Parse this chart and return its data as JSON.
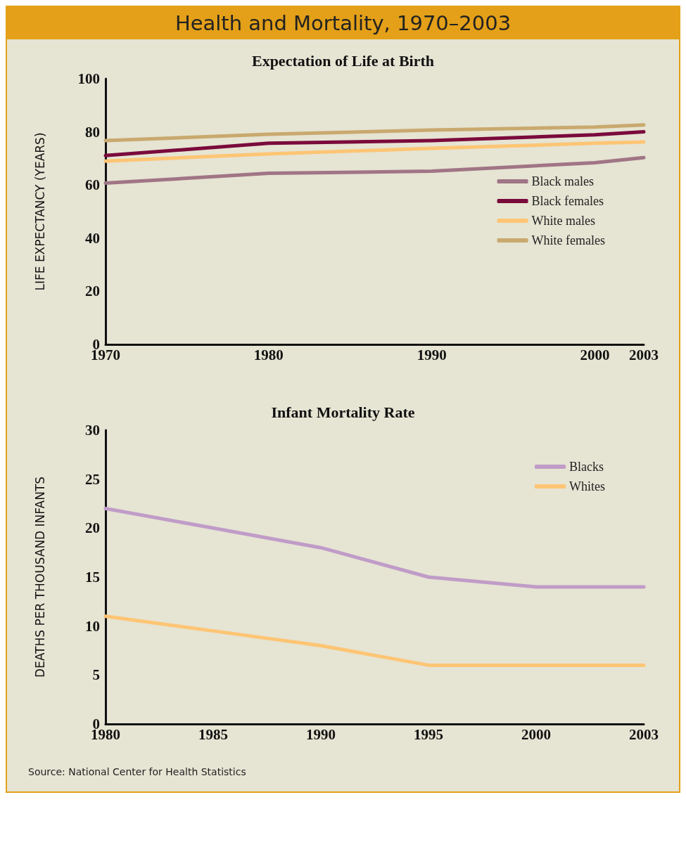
{
  "chart_data": [
    {
      "type": "line",
      "title": "Expectation of Life at Birth",
      "ylabel": "LIFE EXPECTANCY (YEARS)",
      "annotations": [
        "Health and Mortality, 1970–2003"
      ],
      "x": [
        1970,
        1980,
        1990,
        2000,
        2003
      ],
      "xlim": [
        1970,
        2003
      ],
      "xticks": [
        1970,
        1980,
        1990,
        2000,
        2003
      ],
      "ylim": [
        0,
        100
      ],
      "yticks": [
        0,
        20,
        40,
        60,
        80,
        100
      ],
      "series": [
        {
          "name": "Black males",
          "color": "#a07585",
          "values": [
            60.7,
            64.4,
            65.2,
            68.4,
            70.3
          ]
        },
        {
          "name": "Black females",
          "color": "#7a0a3c",
          "values": [
            71.1,
            75.7,
            76.7,
            78.9,
            80.0
          ]
        },
        {
          "name": "White males",
          "color": "#fdc574",
          "values": [
            69.0,
            71.7,
            73.8,
            75.7,
            76.2
          ]
        },
        {
          "name": "White females",
          "color": "#c9a96e",
          "values": [
            76.7,
            79.1,
            80.7,
            81.8,
            82.6
          ]
        }
      ],
      "legend": "right",
      "grid": false,
      "marker": "none",
      "line_style": "solid"
    },
    {
      "type": "line",
      "title": "Infant Mortality Rate",
      "ylabel": "DEATHS PER THOUSAND INFANTS",
      "annotations": [
        "Source: National Center for Health Statistics"
      ],
      "categories": [
        "1980",
        "1985",
        "1990",
        "1995",
        "2000",
        "2003"
      ],
      "ylim": [
        0,
        30
      ],
      "yticks": [
        0,
        5,
        10,
        15,
        20,
        25,
        30
      ],
      "series": [
        {
          "name": "Blacks",
          "color": "#c09cc8",
          "values": [
            22,
            20,
            18,
            15,
            14,
            14
          ]
        },
        {
          "name": "Whites",
          "color": "#fdc574",
          "values": [
            11,
            9.5,
            8,
            6,
            6,
            6
          ]
        }
      ],
      "legend": "top right",
      "grid": false,
      "marker": "none",
      "line_style": "solid"
    }
  ]
}
